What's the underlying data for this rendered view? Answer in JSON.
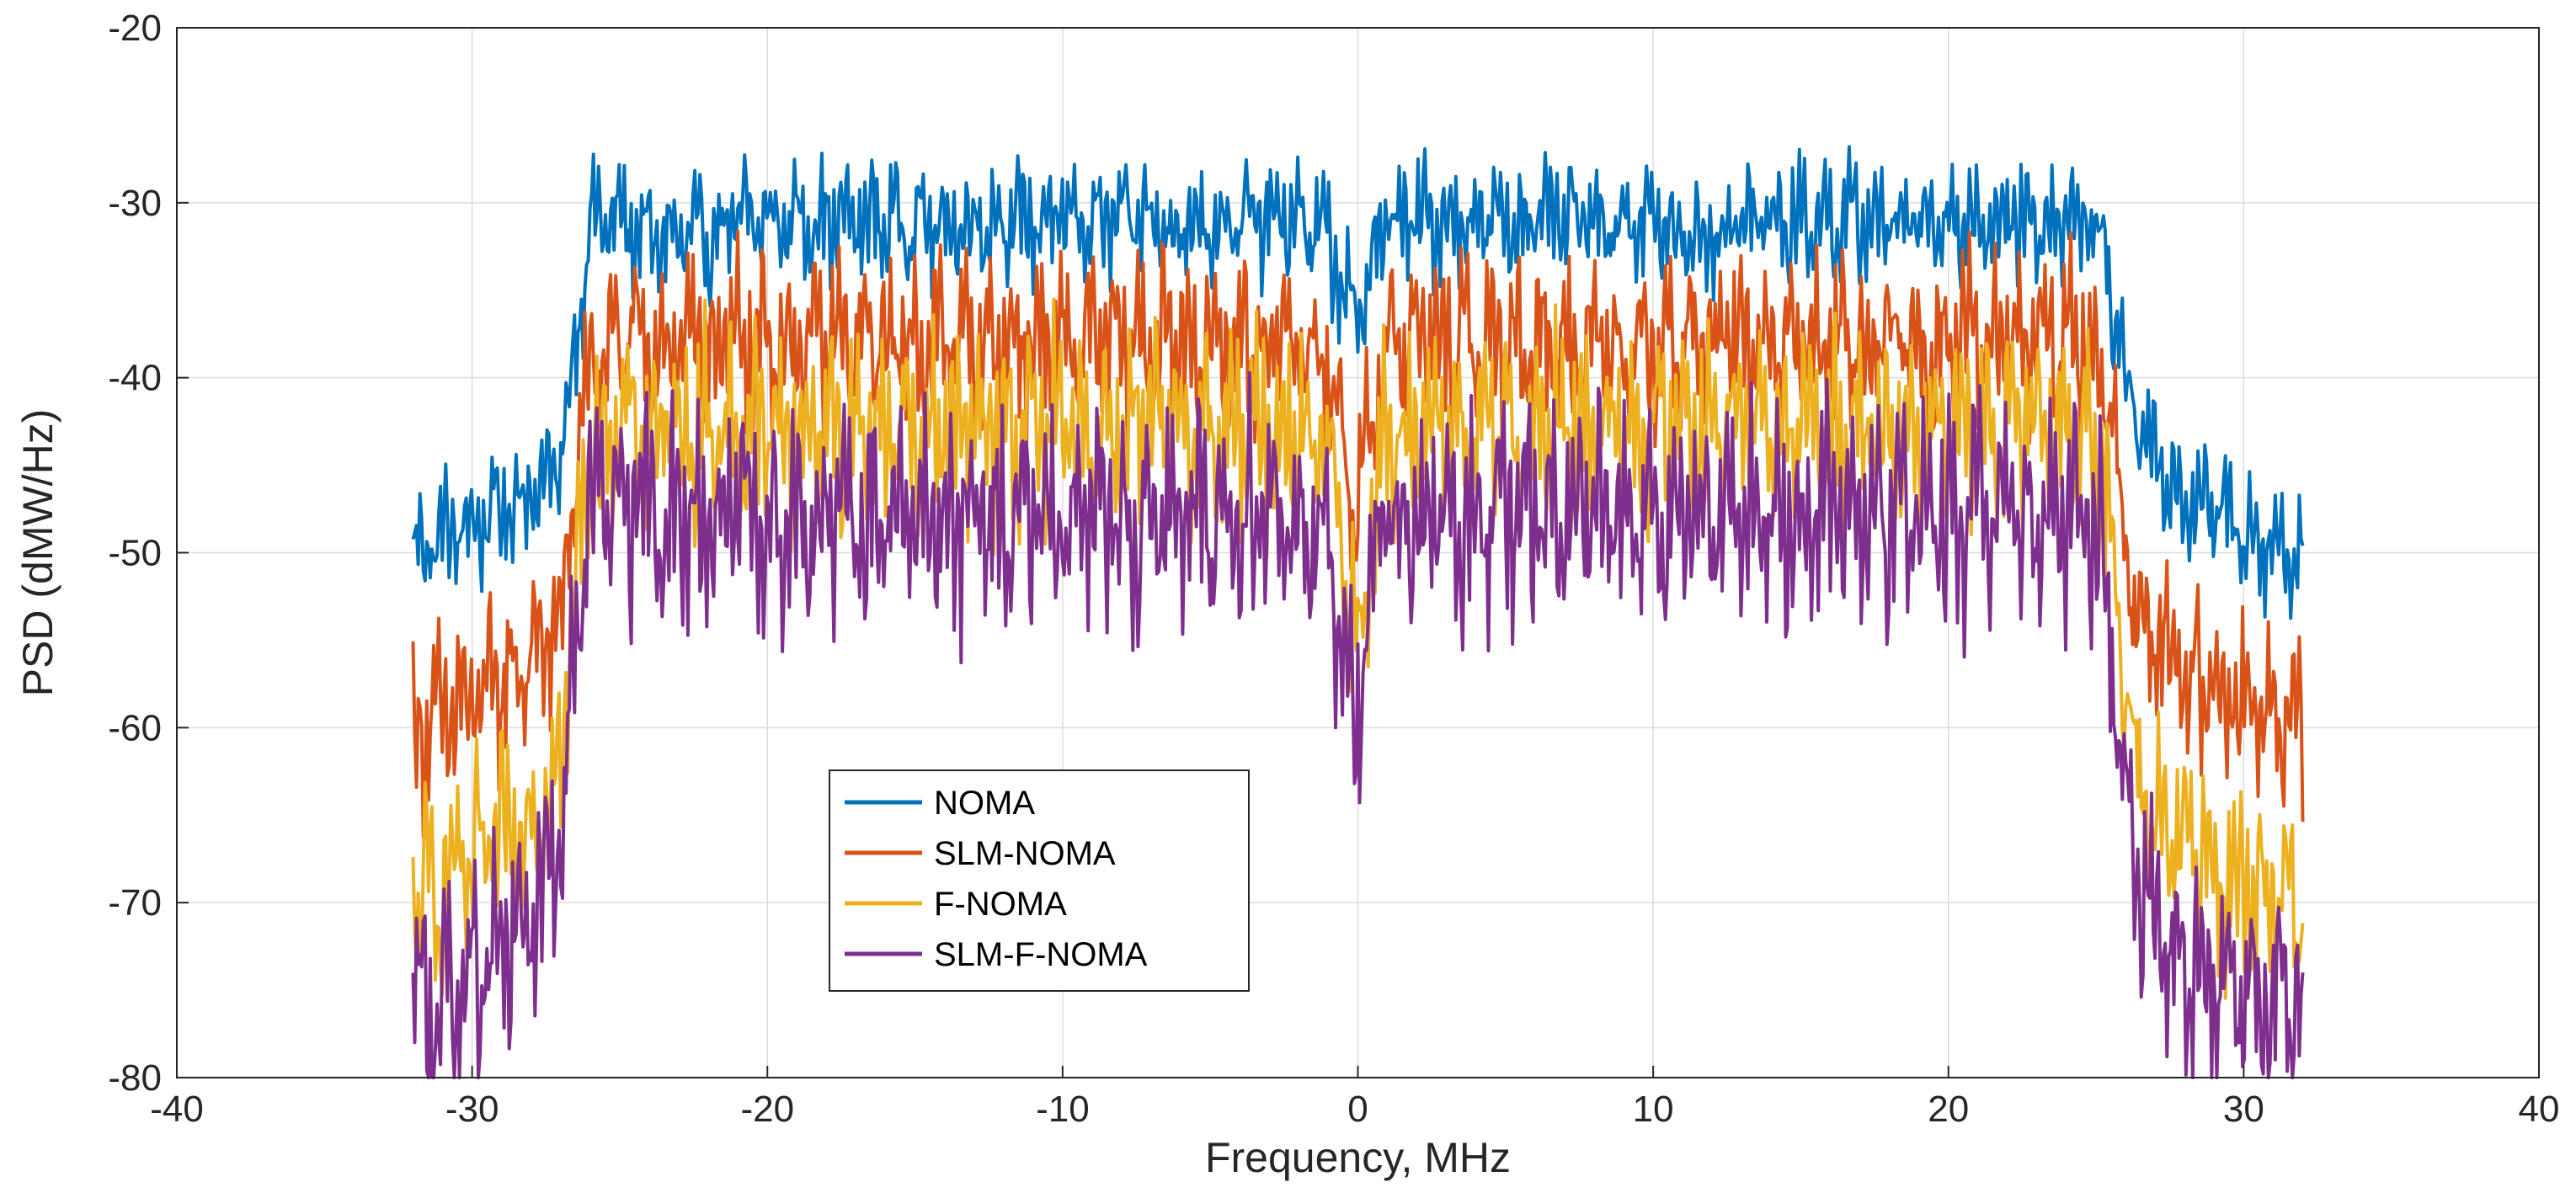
{
  "chart_data": {
    "type": "line",
    "title": "",
    "xlabel": "Frequency, MHz",
    "ylabel": "PSD (dMW/Hz)",
    "xlim": [
      -40,
      40
    ],
    "ylim": [
      -80,
      -20
    ],
    "xticks": [
      -40,
      -30,
      -20,
      -10,
      0,
      10,
      20,
      30,
      40
    ],
    "yticks": [
      -20,
      -30,
      -40,
      -50,
      -60,
      -70,
      -80
    ],
    "xtick_labels": [
      "-40",
      "-30",
      "-20",
      "-10",
      "0",
      "10",
      "20",
      "30",
      "40"
    ],
    "ytick_labels": [
      "-20",
      "-30",
      "-40",
      "-50",
      "-60",
      "-70",
      "-80"
    ],
    "grid": true,
    "legend_position": "lower-center-left",
    "series": [
      {
        "name": "NOMA",
        "color": "#0072BD",
        "x": [
          -32,
          -31,
          -30,
          -29,
          -28,
          -27,
          -26.5,
          -26,
          -25,
          -24,
          -23,
          -22,
          -21,
          -20,
          -19,
          -18,
          -17,
          -16,
          -15,
          -14,
          -13,
          -12,
          -11,
          -10,
          -9,
          -8,
          -7,
          -6,
          -5,
          -4,
          -3,
          -2,
          -1,
          -0.5,
          0,
          0.5,
          1,
          2,
          3,
          4,
          5,
          6,
          7,
          8,
          9,
          10,
          11,
          12,
          13,
          14,
          15,
          16,
          17,
          18,
          19,
          20,
          21,
          22,
          23,
          24,
          25,
          25.5,
          26,
          26.5,
          27,
          28,
          29,
          30,
          31,
          32
        ],
        "y": [
          -50,
          -49,
          -48.5,
          -47.5,
          -46.5,
          -45,
          -38,
          -31,
          -31,
          -32,
          -32,
          -32,
          -31,
          -31,
          -31,
          -31,
          -31,
          -31,
          -31,
          -31.5,
          -31,
          -31,
          -31,
          -31,
          -31,
          -31,
          -31,
          -31.5,
          -31,
          -31,
          -31,
          -31,
          -32,
          -35,
          -37,
          -33,
          -31,
          -31,
          -31,
          -31,
          -31,
          -31,
          -31,
          -31,
          -31,
          -31,
          -32,
          -32,
          -31,
          -31,
          -31,
          -31,
          -31,
          -31,
          -31,
          -31,
          -31,
          -31,
          -31,
          -31,
          -31,
          -35,
          -40,
          -43,
          -45,
          -46.5,
          -47.5,
          -48.5,
          -49.5,
          -50
        ]
      },
      {
        "name": "SLM-NOMA",
        "color": "#D95319",
        "x": [
          -32,
          -31,
          -30,
          -29,
          -28,
          -27,
          -26.5,
          -26,
          -25,
          -24,
          -23,
          -22,
          -21,
          -20,
          -19,
          -18,
          -17,
          -16,
          -15,
          -14,
          -13,
          -12,
          -11,
          -10,
          -9,
          -8,
          -7,
          -6,
          -5,
          -4,
          -3,
          -2,
          -1,
          -0.5,
          0,
          0.5,
          1,
          2,
          3,
          4,
          5,
          6,
          7,
          8,
          9,
          10,
          11,
          12,
          13,
          14,
          15,
          16,
          17,
          18,
          19,
          20,
          21,
          22,
          23,
          24,
          25,
          25.5,
          26,
          26.5,
          27,
          28,
          29,
          30,
          31,
          32
        ],
        "y": [
          -60,
          -59.5,
          -58.5,
          -57.5,
          -56,
          -54,
          -46,
          -39,
          -38,
          -38,
          -38,
          -38,
          -38,
          -38,
          -38,
          -38,
          -38,
          -38,
          -38,
          -38,
          -38,
          -38,
          -38,
          -38,
          -38,
          -38,
          -38,
          -38,
          -38,
          -38,
          -38,
          -38,
          -39,
          -44,
          -48,
          -42,
          -38,
          -38,
          -38,
          -38,
          -38,
          -38,
          -38,
          -38,
          -38,
          -38,
          -38,
          -38,
          -38,
          -38,
          -38,
          -38,
          -38,
          -38,
          -38,
          -38,
          -38,
          -38,
          -38,
          -38,
          -38,
          -43,
          -49,
          -53,
          -55,
          -57,
          -58,
          -59,
          -59.5,
          -60
        ]
      },
      {
        "name": "F-NOMA",
        "color": "#EDB120",
        "x": [
          -32,
          -31,
          -30,
          -29,
          -28,
          -27,
          -26.5,
          -26,
          -25,
          -24,
          -23,
          -22,
          -21,
          -20,
          -19,
          -18,
          -17,
          -16,
          -15,
          -14,
          -13,
          -12,
          -11,
          -10,
          -9,
          -8,
          -7,
          -6,
          -5,
          -4,
          -3,
          -2,
          -1,
          -0.5,
          0,
          0.5,
          1,
          2,
          3,
          4,
          5,
          6,
          7,
          8,
          9,
          10,
          11,
          12,
          13,
          14,
          15,
          16,
          17,
          18,
          19,
          20,
          21,
          22,
          23,
          24,
          25,
          25.5,
          26,
          26.5,
          27,
          28,
          29,
          30,
          31,
          32
        ],
        "y": [
          -70,
          -69,
          -68,
          -66.5,
          -65,
          -62,
          -52,
          -44,
          -43,
          -43,
          -43,
          -43,
          -43,
          -43,
          -43,
          -43,
          -43,
          -43,
          -43,
          -43,
          -43,
          -43,
          -43,
          -43,
          -43,
          -43,
          -43,
          -43,
          -43,
          -43,
          -43,
          -43,
          -44,
          -50,
          -55,
          -48,
          -43,
          -43,
          -43,
          -43,
          -43,
          -43,
          -43,
          -43,
          -43,
          -43,
          -43,
          -43,
          -43,
          -43,
          -43,
          -43,
          -43,
          -43,
          -43,
          -43,
          -43,
          -43,
          -43,
          -43,
          -43,
          -50,
          -58,
          -63,
          -65,
          -66.5,
          -68,
          -69,
          -69.5,
          -70
        ]
      },
      {
        "name": "SLM-F-NOMA",
        "color": "#7E2F8E",
        "x": [
          -32,
          -31,
          -30,
          -29,
          -28,
          -27,
          -26.5,
          -26,
          -25,
          -24,
          -23,
          -22,
          -21,
          -20,
          -19,
          -18,
          -17,
          -16,
          -15,
          -14,
          -13,
          -12,
          -11,
          -10,
          -9,
          -8,
          -7,
          -6,
          -5,
          -4,
          -3,
          -2,
          -1,
          -0.5,
          0,
          0.5,
          1,
          2,
          3,
          4,
          5,
          6,
          7,
          8,
          9,
          10,
          11,
          12,
          13,
          14,
          15,
          16,
          17,
          18,
          19,
          20,
          21,
          22,
          23,
          24,
          25,
          25.5,
          26,
          26.5,
          27,
          28,
          29,
          30,
          31,
          32
        ],
        "y": [
          -76,
          -75.5,
          -74.5,
          -73,
          -71,
          -67,
          -55,
          -47,
          -47.5,
          -48,
          -48,
          -48,
          -48,
          -48,
          -48,
          -48,
          -48,
          -48,
          -48,
          -48,
          -48,
          -48,
          -48,
          -48,
          -48,
          -48,
          -48,
          -48,
          -48,
          -48,
          -48,
          -48,
          -49,
          -55,
          -60,
          -52,
          -48,
          -48,
          -48,
          -48,
          -48,
          -48,
          -48,
          -48,
          -48,
          -48,
          -48,
          -48,
          -48,
          -48,
          -48,
          -48,
          -48,
          -48,
          -48,
          -48,
          -48,
          -48,
          -48,
          -48,
          -48,
          -55,
          -64,
          -69,
          -71,
          -73,
          -74.5,
          -75.5,
          -76,
          -76
        ]
      }
    ]
  }
}
